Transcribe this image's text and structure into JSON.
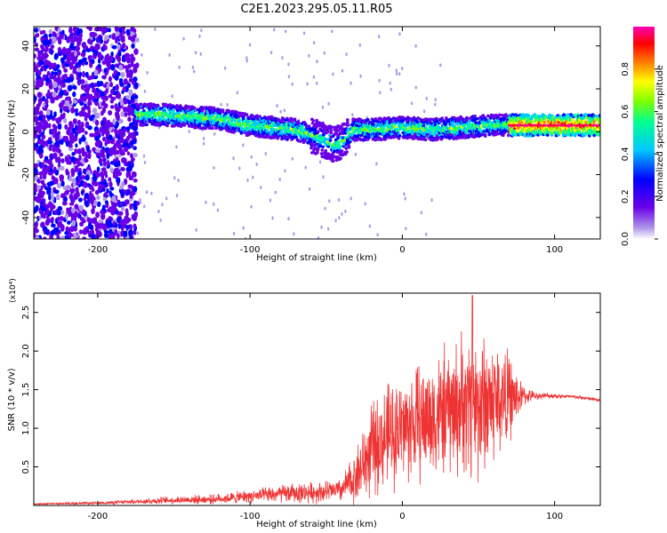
{
  "title": "C2E1.2023.295.05.11.R05",
  "chart_data": [
    {
      "type": "heatmap",
      "xlabel": "Height of straight line (km)",
      "ylabel": "Frequency (Hz)",
      "xlim": [
        -242,
        130
      ],
      "ylim": [
        -50,
        49
      ],
      "xticks": [
        -200,
        -100,
        0,
        100
      ],
      "xtick_labels": [
        "-200",
        "-100",
        "0",
        "100"
      ],
      "yticks": [
        -40,
        -20,
        0,
        20,
        40
      ],
      "ytick_labels": [
        "-40",
        "-20",
        "0",
        "20",
        "40"
      ],
      "colorbar": {
        "label": "Normalized spectral amplitude",
        "range": [
          0,
          1
        ],
        "ticks": [
          0,
          0.2,
          0.4,
          0.6,
          0.8
        ],
        "tick_labels": [
          "0.0",
          "0.2",
          "0.4",
          "0.6",
          "0.8"
        ],
        "colors": [
          "#ffffff",
          "#b09ae8",
          "#6a00e8",
          "#0000ff",
          "#00c8ff",
          "#00ff90",
          "#7fff00",
          "#ffff00",
          "#ff8000",
          "#ff0000",
          "#ff00b4"
        ]
      },
      "ridge": {
        "x": [
          -175,
          -160,
          -140,
          -120,
          -100,
          -85,
          -70,
          -55,
          -45,
          -38,
          -32,
          -20,
          0,
          20,
          40,
          60,
          80,
          100,
          130
        ],
        "y": [
          8,
          8,
          7,
          6,
          3,
          2,
          1,
          -3,
          -6,
          -4,
          1,
          1,
          2,
          1,
          2,
          3,
          3,
          3,
          3
        ]
      },
      "grid": false,
      "legend": "colorbar-right"
    },
    {
      "type": "line",
      "xlabel": "Height of straight line (km)",
      "ylabel": "SNR (10 * v/v)",
      "y_multiplier": "(x10⁴)",
      "xlim": [
        -242,
        130
      ],
      "ylim": [
        0,
        2.75
      ],
      "xticks": [
        -200,
        -100,
        0,
        100
      ],
      "xtick_labels": [
        "-200",
        "-100",
        "0",
        "100"
      ],
      "yticks": [
        0.5,
        1.0,
        1.5,
        2.0,
        2.5
      ],
      "ytick_labels": [
        "0.5",
        "1.0",
        "1.5",
        "2.0",
        "2.5"
      ],
      "color": "#ee3333",
      "envelope": {
        "x": [
          -242,
          -200,
          -175,
          -150,
          -125,
          -110,
          -100,
          -90,
          -80,
          -70,
          -60,
          -50,
          -40,
          -32,
          -25,
          -20,
          -10,
          0,
          10,
          20,
          30,
          40,
          50,
          60,
          70,
          75,
          80,
          85,
          90,
          100,
          110,
          120,
          130
        ],
        "base": [
          0.02,
          0.03,
          0.05,
          0.07,
          0.08,
          0.1,
          0.12,
          0.13,
          0.15,
          0.16,
          0.17,
          0.18,
          0.2,
          0.35,
          0.55,
          0.72,
          0.9,
          1.0,
          1.08,
          1.15,
          1.22,
          1.3,
          1.32,
          1.36,
          1.4,
          1.4,
          1.42,
          1.42,
          1.42,
          1.42,
          1.41,
          1.39,
          1.36
        ],
        "spread": [
          0.01,
          0.02,
          0.04,
          0.06,
          0.07,
          0.09,
          0.1,
          0.12,
          0.14,
          0.15,
          0.16,
          0.17,
          0.18,
          0.4,
          0.6,
          0.7,
          0.8,
          0.85,
          0.9,
          0.95,
          1.0,
          1.1,
          1.2,
          1.0,
          0.7,
          0.4,
          0.15,
          0.08,
          0.05,
          0.04,
          0.03,
          0.03,
          0.03
        ]
      },
      "peak": {
        "x": 46,
        "y": 2.72
      },
      "grid": false
    }
  ]
}
